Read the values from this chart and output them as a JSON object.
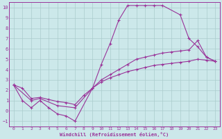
{
  "xlabel": "Windchill (Refroidissement éolien,°C)",
  "xlim": [
    -0.5,
    23.5
  ],
  "ylim": [
    -1.5,
    10.5
  ],
  "xticks": [
    0,
    1,
    2,
    3,
    4,
    5,
    6,
    7,
    8,
    9,
    10,
    11,
    12,
    13,
    14,
    15,
    16,
    17,
    18,
    19,
    20,
    21,
    22,
    23
  ],
  "yticks": [
    -1,
    0,
    1,
    2,
    3,
    4,
    5,
    6,
    7,
    8,
    9,
    10
  ],
  "bg_color": "#cce8ea",
  "line_color": "#993399",
  "grid_color": "#aacccc",
  "curve1_x": [
    0,
    1,
    2,
    3,
    4,
    5,
    6,
    7,
    9,
    10,
    11,
    12,
    13,
    14,
    15,
    16,
    17,
    19,
    20,
    21,
    22,
    23
  ],
  "curve1_y": [
    2.5,
    1.0,
    0.3,
    1.0,
    0.3,
    -0.3,
    -0.5,
    -1.0,
    2.2,
    4.5,
    6.5,
    8.8,
    10.2,
    10.2,
    10.2,
    10.2,
    10.2,
    9.3,
    7.0,
    6.2,
    5.2,
    4.8
  ],
  "curve2_x": [
    0,
    2,
    3,
    5,
    7,
    9,
    10,
    11,
    12,
    13,
    14,
    15,
    16,
    17,
    18,
    19,
    20,
    21,
    22,
    23
  ],
  "curve2_y": [
    2.5,
    1.0,
    1.2,
    0.5,
    0.3,
    2.2,
    3.0,
    3.5,
    4.0,
    4.5,
    5.0,
    5.2,
    5.4,
    5.6,
    5.7,
    5.8,
    5.9,
    6.8,
    5.2,
    4.8
  ],
  "curve3_x": [
    0,
    1,
    2,
    3,
    4,
    5,
    6,
    7,
    8,
    9,
    10,
    11,
    12,
    13,
    14,
    15,
    16,
    17,
    18,
    19,
    20,
    21,
    22,
    23
  ],
  "curve3_y": [
    2.5,
    2.2,
    1.2,
    1.3,
    1.1,
    0.9,
    0.8,
    0.6,
    1.5,
    2.2,
    2.8,
    3.2,
    3.5,
    3.8,
    4.0,
    4.2,
    4.4,
    4.5,
    4.6,
    4.7,
    4.8,
    5.0,
    4.9,
    4.8
  ]
}
